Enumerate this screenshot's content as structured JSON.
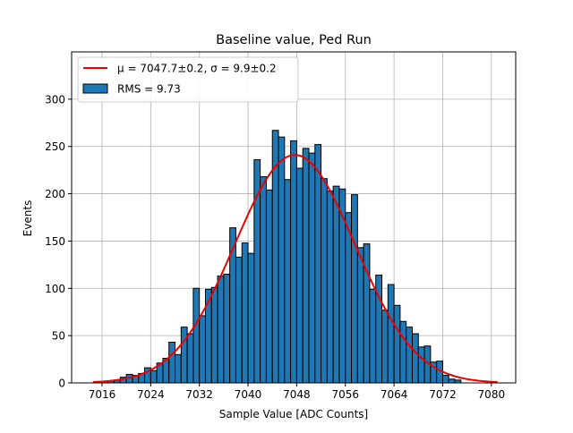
{
  "chart_data": {
    "type": "bar",
    "title": "Baseline value, Ped Run",
    "xlabel": "Sample Value [ADC Counts]",
    "ylabel": "Events",
    "xlim": [
      7011,
      7084
    ],
    "ylim": [
      0,
      350
    ],
    "grid": true,
    "legend_position": "top-left",
    "bin_width": 1,
    "x_ticks": [
      7016,
      7024,
      7032,
      7040,
      7048,
      7056,
      7064,
      7072,
      7080
    ],
    "y_ticks": [
      0,
      50,
      100,
      150,
      200,
      250,
      300
    ],
    "histogram": {
      "name": "RMS = 9.73",
      "bin_starts": [
        7015,
        7016,
        7017,
        7018,
        7019,
        7020,
        7021,
        7022,
        7023,
        7024,
        7025,
        7026,
        7027,
        7028,
        7029,
        7030,
        7031,
        7032,
        7033,
        7034,
        7035,
        7036,
        7037,
        7038,
        7039,
        7040,
        7041,
        7042,
        7043,
        7044,
        7045,
        7046,
        7047,
        7048,
        7049,
        7050,
        7051,
        7052,
        7053,
        7054,
        7055,
        7056,
        7057,
        7058,
        7059,
        7060,
        7061,
        7062,
        7063,
        7064,
        7065,
        7066,
        7067,
        7068,
        7069,
        7070,
        7071,
        7072,
        7073,
        7074
      ],
      "counts": [
        1,
        1,
        2,
        3,
        6,
        9,
        8,
        10,
        16,
        13,
        21,
        26,
        43,
        30,
        59,
        52,
        100,
        71,
        99,
        101,
        113,
        115,
        164,
        133,
        148,
        137,
        236,
        218,
        204,
        267,
        260,
        215,
        256,
        227,
        248,
        243,
        252,
        216,
        203,
        208,
        205,
        180,
        199,
        143,
        147,
        99,
        114,
        77,
        104,
        82,
        65,
        59,
        52,
        38,
        39,
        22,
        23,
        8,
        4,
        3
      ]
    },
    "fit": {
      "name": "μ = 7047.7±0.2, σ = 9.9±0.2",
      "mu": 7047.7,
      "sigma": 9.9,
      "amplitude": 241,
      "x_range": [
        7014.5,
        7081
      ],
      "color": "#ee0000"
    },
    "colors": {
      "bar_fill": "#1f77b4",
      "bar_edge": "#000000",
      "grid": "#b0b0b0"
    }
  }
}
